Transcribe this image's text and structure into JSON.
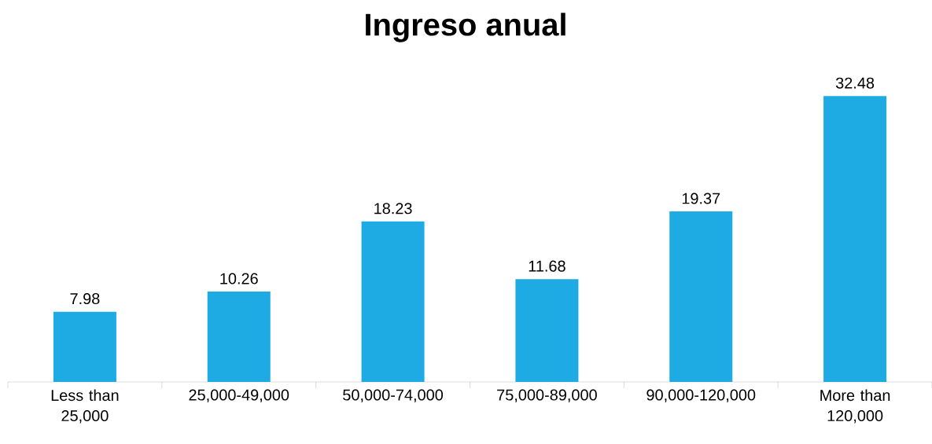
{
  "chart_data": {
    "type": "bar",
    "title": "Ingreso anual",
    "categories": [
      "Less than 25,000",
      "25,000-49,000",
      "50,000-74,000",
      "75,000-89,000",
      "90,000-120,000",
      "More than 120,000"
    ],
    "values": [
      7.98,
      10.26,
      18.23,
      11.68,
      19.37,
      32.48
    ],
    "color": "#1eabe3",
    "data_labels": true
  }
}
